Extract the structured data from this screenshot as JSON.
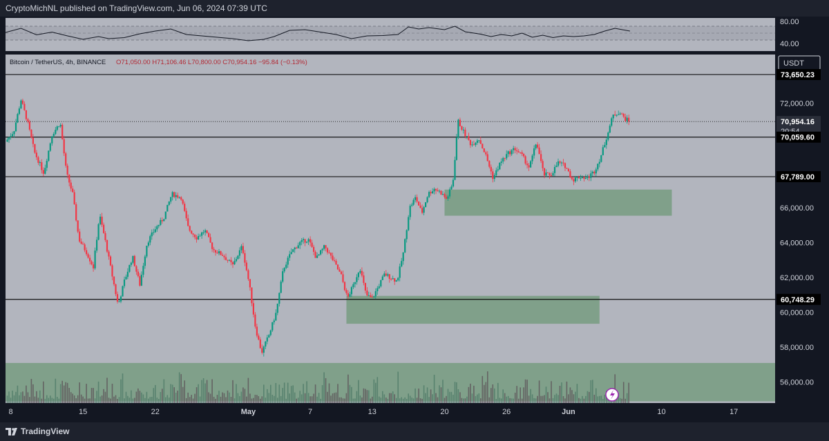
{
  "header": {
    "publish_line": "CryptoMichNL published on TradingView.com, Jun 06, 2024 07:39 UTC"
  },
  "footer": {
    "brand": "TradingView"
  },
  "legend": {
    "symbol": "Bitcoin / TetherUS, 4h, BINANCE",
    "ohlc": "O71,050.00  H71,106.46  L70,800.00  C70,954.16  −95.84 (−0.13%)"
  },
  "currency_badge": "USDT",
  "rsi_axis": [
    "80.00",
    "40.00"
  ],
  "colors": {
    "bg": "#b2b5be",
    "up": "#089981",
    "down": "#f23645",
    "zone": "#6f9a78",
    "hline": "#000000",
    "dark": "#131722"
  },
  "chart_data": {
    "type": "candlestick",
    "timeframe": "4h",
    "ylim": [
      54800,
      74800
    ],
    "y_ticks": [
      "72,000.00",
      "66,000.00",
      "64,000.00",
      "62,000.00",
      "60,000.00",
      "58,000.00",
      "56,000.00"
    ],
    "x_ticks": [
      {
        "label": "8",
        "day": 8
      },
      {
        "label": "15",
        "day": 15
      },
      {
        "label": "22",
        "day": 22
      },
      {
        "label": "May",
        "day": 31
      },
      {
        "label": "7",
        "day": 37
      },
      {
        "label": "13",
        "day": 43
      },
      {
        "label": "20",
        "day": 50
      },
      {
        "label": "26",
        "day": 56
      },
      {
        "label": "Jun",
        "day": 62
      },
      {
        "label": "10",
        "day": 71
      },
      {
        "label": "17",
        "day": 78
      }
    ],
    "x_range_days": [
      7.5,
      82
    ],
    "horizontal_levels": [
      {
        "price": 73650.23,
        "label": "73,650.23",
        "style": "solid"
      },
      {
        "price": 70954.16,
        "label": "70,954.16",
        "sub": "20:54",
        "style": "dotted",
        "current": true
      },
      {
        "price": 70059.6,
        "label": "70,059.60",
        "style": "solid"
      },
      {
        "price": 67789.0,
        "label": "67,789.00",
        "style": "solid"
      },
      {
        "price": 60748.29,
        "label": "60,748.29",
        "style": "solid"
      }
    ],
    "zones": [
      {
        "from_day": 50,
        "to_day": 72,
        "low": 65550,
        "high": 67050
      },
      {
        "from_day": 40.5,
        "to_day": 65,
        "low": 59350,
        "high": 60950
      },
      {
        "from_day": 7.5,
        "to_day": 82,
        "low": 54900,
        "high": 57100
      }
    ],
    "close_path": [
      [
        7.5,
        69800
      ],
      [
        8.3,
        70400
      ],
      [
        9.0,
        72200
      ],
      [
        9.6,
        71000
      ],
      [
        10.3,
        69200
      ],
      [
        11.2,
        68000
      ],
      [
        12.0,
        70200
      ],
      [
        12.8,
        70900
      ],
      [
        13.4,
        68000
      ],
      [
        14.0,
        66800
      ],
      [
        14.6,
        64200
      ],
      [
        15.3,
        63500
      ],
      [
        16.0,
        62600
      ],
      [
        16.6,
        65600
      ],
      [
        17.2,
        64000
      ],
      [
        17.8,
        62200
      ],
      [
        18.4,
        60400
      ],
      [
        19.0,
        61800
      ],
      [
        19.8,
        63200
      ],
      [
        20.5,
        61600
      ],
      [
        21.2,
        64000
      ],
      [
        22.0,
        64800
      ],
      [
        22.8,
        65400
      ],
      [
        23.6,
        66800
      ],
      [
        24.5,
        66600
      ],
      [
        25.2,
        64800
      ],
      [
        26.0,
        64300
      ],
      [
        26.8,
        64700
      ],
      [
        27.6,
        63600
      ],
      [
        28.5,
        63300
      ],
      [
        29.5,
        62700
      ],
      [
        30.4,
        63800
      ],
      [
        31.1,
        61600
      ],
      [
        31.7,
        59100
      ],
      [
        32.3,
        57700
      ],
      [
        33.0,
        58700
      ],
      [
        33.7,
        60000
      ],
      [
        34.4,
        62500
      ],
      [
        35.2,
        63500
      ],
      [
        36.0,
        64000
      ],
      [
        36.8,
        64200
      ],
      [
        37.6,
        63100
      ],
      [
        38.4,
        63800
      ],
      [
        39.2,
        63000
      ],
      [
        40.0,
        62100
      ],
      [
        40.6,
        60800
      ],
      [
        41.2,
        61600
      ],
      [
        41.8,
        62600
      ],
      [
        42.4,
        61000
      ],
      [
        43.0,
        60800
      ],
      [
        43.6,
        61500
      ],
      [
        44.2,
        62200
      ],
      [
        44.8,
        62000
      ],
      [
        45.4,
        61800
      ],
      [
        46.0,
        63400
      ],
      [
        46.6,
        66000
      ],
      [
        47.2,
        66600
      ],
      [
        47.8,
        65700
      ],
      [
        48.4,
        66800
      ],
      [
        49.0,
        67100
      ],
      [
        49.6,
        66900
      ],
      [
        50.2,
        66500
      ],
      [
        50.8,
        67400
      ],
      [
        51.3,
        71000
      ],
      [
        51.9,
        70300
      ],
      [
        52.6,
        69600
      ],
      [
        53.3,
        70000
      ],
      [
        54.0,
        69000
      ],
      [
        54.7,
        67700
      ],
      [
        55.4,
        68600
      ],
      [
        56.1,
        69100
      ],
      [
        56.8,
        69400
      ],
      [
        57.5,
        69000
      ],
      [
        58.2,
        68300
      ],
      [
        58.9,
        69800
      ],
      [
        59.6,
        67900
      ],
      [
        60.3,
        67900
      ],
      [
        61.0,
        68600
      ],
      [
        61.7,
        68400
      ],
      [
        62.4,
        67600
      ],
      [
        63.1,
        67800
      ],
      [
        63.8,
        67700
      ],
      [
        64.5,
        68100
      ],
      [
        65.1,
        68900
      ],
      [
        65.7,
        70100
      ],
      [
        66.3,
        71300
      ],
      [
        66.9,
        71500
      ],
      [
        67.5,
        71100
      ],
      [
        67.95,
        70954
      ]
    ],
    "rsi_path": [
      [
        7.5,
        62
      ],
      [
        9.0,
        74
      ],
      [
        10.5,
        55
      ],
      [
        12.0,
        63
      ],
      [
        13.5,
        52
      ],
      [
        15.0,
        42
      ],
      [
        16.5,
        50
      ],
      [
        17.5,
        44
      ],
      [
        19.0,
        47
      ],
      [
        20.5,
        58
      ],
      [
        22.0,
        66
      ],
      [
        23.5,
        72
      ],
      [
        25.0,
        56
      ],
      [
        26.5,
        52
      ],
      [
        28.0,
        48
      ],
      [
        29.5,
        44
      ],
      [
        31.0,
        38
      ],
      [
        32.5,
        42
      ],
      [
        33.5,
        50
      ],
      [
        35.0,
        68
      ],
      [
        36.5,
        70
      ],
      [
        38.0,
        63
      ],
      [
        39.5,
        56
      ],
      [
        41.0,
        44
      ],
      [
        42.5,
        52
      ],
      [
        44.0,
        53
      ],
      [
        45.5,
        56
      ],
      [
        46.5,
        78
      ],
      [
        47.5,
        72
      ],
      [
        48.5,
        76
      ],
      [
        50.0,
        70
      ],
      [
        51.0,
        80
      ],
      [
        52.0,
        64
      ],
      [
        53.5,
        57
      ],
      [
        54.5,
        50
      ],
      [
        55.5,
        56
      ],
      [
        56.5,
        52
      ],
      [
        57.5,
        60
      ],
      [
        58.5,
        48
      ],
      [
        59.5,
        54
      ],
      [
        60.5,
        47
      ],
      [
        61.5,
        52
      ],
      [
        62.5,
        50
      ],
      [
        63.5,
        52
      ],
      [
        64.5,
        56
      ],
      [
        65.5,
        66
      ],
      [
        66.5,
        74
      ],
      [
        67.2,
        70
      ],
      [
        67.95,
        66
      ]
    ]
  }
}
